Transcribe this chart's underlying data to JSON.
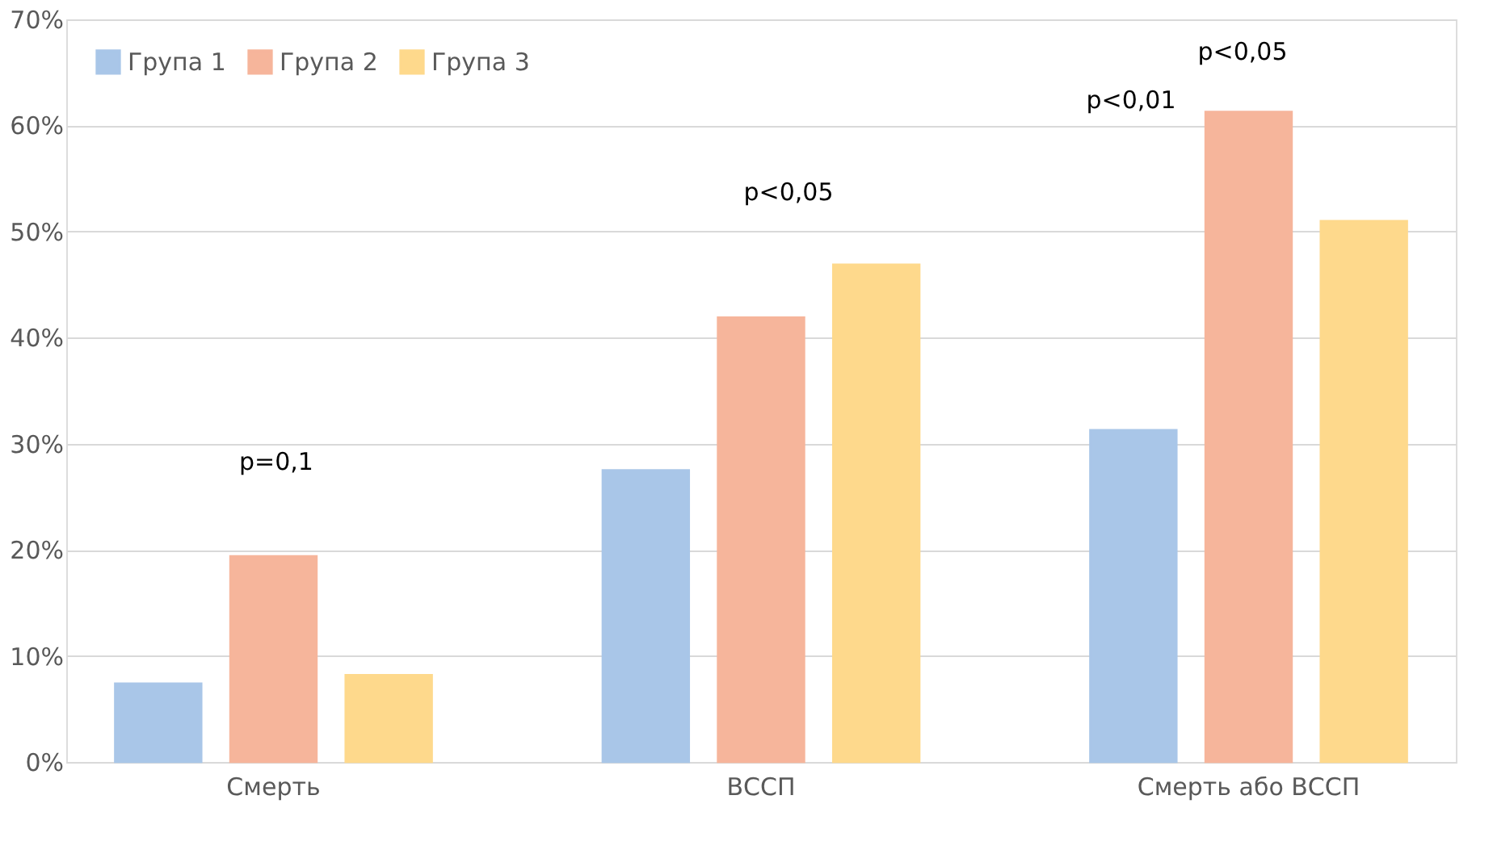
{
  "chart_data": {
    "type": "bar",
    "categories": [
      "Смерть",
      "ВССП",
      "Смерть або ВССП"
    ],
    "series": [
      {
        "name": "Група 1",
        "color": "#a9c6e8",
        "values": [
          7.4,
          27.5,
          31.3
        ]
      },
      {
        "name": "Група 2",
        "color": "#f6b59b",
        "values": [
          19.4,
          41.9,
          61.3
        ]
      },
      {
        "name": "Група 3",
        "color": "#fed98c",
        "values": [
          8.2,
          46.9,
          51.0
        ]
      }
    ],
    "ylim": [
      0,
      70
    ],
    "yticks": [
      {
        "value": 0,
        "label": "0%"
      },
      {
        "value": 10,
        "label": "10%"
      },
      {
        "value": 20,
        "label": "20%"
      },
      {
        "value": 30,
        "label": "30%"
      },
      {
        "value": 40,
        "label": "40%"
      },
      {
        "value": 50,
        "label": "50%"
      },
      {
        "value": 60,
        "label": "60%"
      },
      {
        "value": 70,
        "label": "70%"
      }
    ],
    "annotations": [
      "p=0,1",
      "p<0,05",
      "p<0,01",
      "p<0,05"
    ],
    "grid": "y",
    "legend": "top left"
  }
}
